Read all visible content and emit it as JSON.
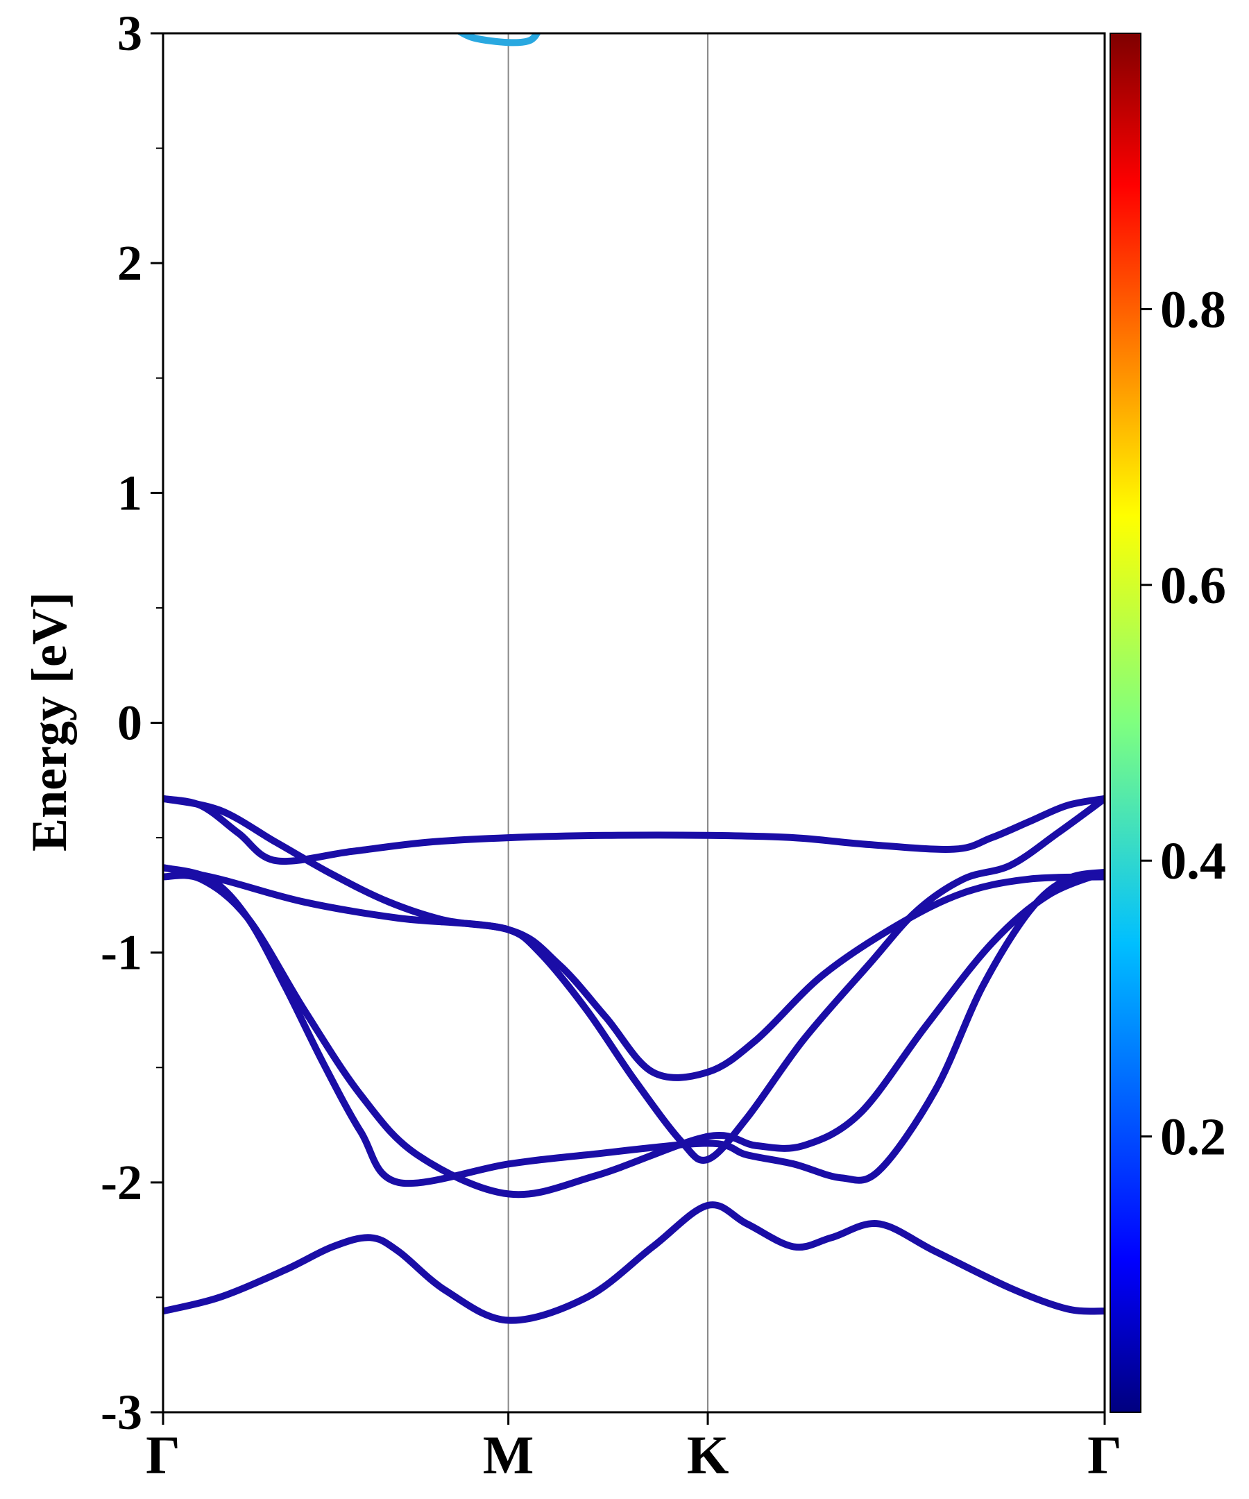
{
  "chart_data": {
    "type": "line",
    "title": "",
    "ylabel": "Energy [eV]",
    "xlabel": "",
    "ylim": [
      -3,
      3
    ],
    "y_ticks": [
      {
        "value": -3,
        "label": "-3"
      },
      {
        "value": -2,
        "label": "-2"
      },
      {
        "value": -1,
        "label": "-1"
      },
      {
        "value": 0,
        "label": "0"
      },
      {
        "value": 1,
        "label": "1"
      },
      {
        "value": 2,
        "label": "2"
      },
      {
        "value": 3,
        "label": "3"
      }
    ],
    "k_path": [
      {
        "label": "Γ",
        "k": 0
      },
      {
        "label": "M",
        "k": 0.3667
      },
      {
        "label": "K",
        "k": 0.5785
      },
      {
        "label": "Γ",
        "k": 1.0
      }
    ],
    "bands": [
      {
        "color": "#1a0da6",
        "points": [
          [
            0,
            -2.56
          ],
          [
            0.06,
            -2.5
          ],
          [
            0.13,
            -2.38
          ],
          [
            0.18,
            -2.28
          ],
          [
            0.22,
            -2.24
          ],
          [
            0.25,
            -2.3
          ],
          [
            0.3,
            -2.47
          ],
          [
            0.3667,
            -2.6
          ],
          [
            0.45,
            -2.5
          ],
          [
            0.52,
            -2.28
          ],
          [
            0.5785,
            -2.1
          ],
          [
            0.62,
            -2.18
          ],
          [
            0.67,
            -2.28
          ],
          [
            0.71,
            -2.24
          ],
          [
            0.76,
            -2.18
          ],
          [
            0.82,
            -2.3
          ],
          [
            0.9,
            -2.46
          ],
          [
            0.96,
            -2.55
          ],
          [
            1.0,
            -2.56
          ]
        ]
      },
      {
        "color": "#1a0da6",
        "points": [
          [
            0,
            -0.63
          ],
          [
            0.05,
            -0.68
          ],
          [
            0.09,
            -0.85
          ],
          [
            0.13,
            -1.15
          ],
          [
            0.17,
            -1.48
          ],
          [
            0.21,
            -1.78
          ],
          [
            0.25,
            -2.0
          ],
          [
            0.3667,
            -1.92
          ],
          [
            0.45,
            -1.88
          ],
          [
            0.5785,
            -1.83
          ],
          [
            0.62,
            -1.88
          ],
          [
            0.67,
            -1.92
          ],
          [
            0.72,
            -1.98
          ],
          [
            0.76,
            -1.95
          ],
          [
            0.82,
            -1.6
          ],
          [
            0.87,
            -1.15
          ],
          [
            0.92,
            -0.82
          ],
          [
            0.96,
            -0.68
          ],
          [
            1.0,
            -0.65
          ]
        ]
      },
      {
        "color": "#1a0da6",
        "points": [
          [
            0,
            -0.67
          ],
          [
            0.04,
            -0.68
          ],
          [
            0.09,
            -0.85
          ],
          [
            0.15,
            -1.25
          ],
          [
            0.21,
            -1.62
          ],
          [
            0.27,
            -1.88
          ],
          [
            0.3667,
            -2.05
          ],
          [
            0.46,
            -1.97
          ],
          [
            0.5785,
            -1.8
          ],
          [
            0.63,
            -1.84
          ],
          [
            0.68,
            -1.84
          ],
          [
            0.74,
            -1.7
          ],
          [
            0.81,
            -1.32
          ],
          [
            0.88,
            -0.96
          ],
          [
            0.94,
            -0.75
          ],
          [
            1.0,
            -0.65
          ]
        ]
      },
      {
        "color": "#1a0da6",
        "points": [
          [
            0,
            -0.63
          ],
          [
            0.06,
            -0.68
          ],
          [
            0.15,
            -0.78
          ],
          [
            0.25,
            -0.85
          ],
          [
            0.3667,
            -0.9
          ],
          [
            0.42,
            -1.05
          ],
          [
            0.47,
            -1.28
          ],
          [
            0.52,
            -1.52
          ],
          [
            0.5785,
            -1.52
          ],
          [
            0.63,
            -1.38
          ],
          [
            0.7,
            -1.1
          ],
          [
            0.78,
            -0.88
          ],
          [
            0.85,
            -0.74
          ],
          [
            0.92,
            -0.68
          ],
          [
            1.0,
            -0.67
          ]
        ]
      },
      {
        "color": "#1a0da6",
        "points": [
          [
            0,
            -0.33
          ],
          [
            0.04,
            -0.36
          ],
          [
            0.08,
            -0.48
          ],
          [
            0.12,
            -0.6
          ],
          [
            0.2,
            -0.56
          ],
          [
            0.28,
            -0.52
          ],
          [
            0.3667,
            -0.5
          ],
          [
            0.47,
            -0.49
          ],
          [
            0.5785,
            -0.49
          ],
          [
            0.67,
            -0.5
          ],
          [
            0.75,
            -0.53
          ],
          [
            0.84,
            -0.55
          ],
          [
            0.88,
            -0.5
          ],
          [
            0.92,
            -0.43
          ],
          [
            0.96,
            -0.36
          ],
          [
            1.0,
            -0.33
          ]
        ]
      },
      {
        "color": "#1a0da6",
        "points": [
          [
            0,
            -0.33
          ],
          [
            0.06,
            -0.38
          ],
          [
            0.12,
            -0.52
          ],
          [
            0.18,
            -0.66
          ],
          [
            0.24,
            -0.78
          ],
          [
            0.3,
            -0.86
          ],
          [
            0.3667,
            -0.9
          ],
          [
            0.4,
            -1.0
          ],
          [
            0.45,
            -1.25
          ],
          [
            0.5,
            -1.55
          ],
          [
            0.55,
            -1.82
          ],
          [
            0.5785,
            -1.9
          ],
          [
            0.62,
            -1.72
          ],
          [
            0.68,
            -1.38
          ],
          [
            0.75,
            -1.05
          ],
          [
            0.8,
            -0.82
          ],
          [
            0.85,
            -0.68
          ],
          [
            0.9,
            -0.62
          ],
          [
            0.95,
            -0.48
          ],
          [
            1.0,
            -0.33
          ]
        ]
      },
      {
        "color": "#29a8e0",
        "points": [
          [
            0.31,
            3.02
          ],
          [
            0.33,
            2.98
          ],
          [
            0.3667,
            2.96
          ],
          [
            0.39,
            2.97
          ],
          [
            0.4,
            3.02
          ]
        ]
      }
    ],
    "colorbar": {
      "ticks": [
        {
          "value": 0.2,
          "label": "0.2"
        },
        {
          "value": 0.4,
          "label": "0.4"
        },
        {
          "value": 0.6,
          "label": "0.6"
        },
        {
          "value": 0.8,
          "label": "0.8"
        }
      ],
      "range": [
        0.0,
        1.0
      ],
      "colormap": "jet"
    },
    "grid": false,
    "vertical_lines_at_k_points": true
  }
}
